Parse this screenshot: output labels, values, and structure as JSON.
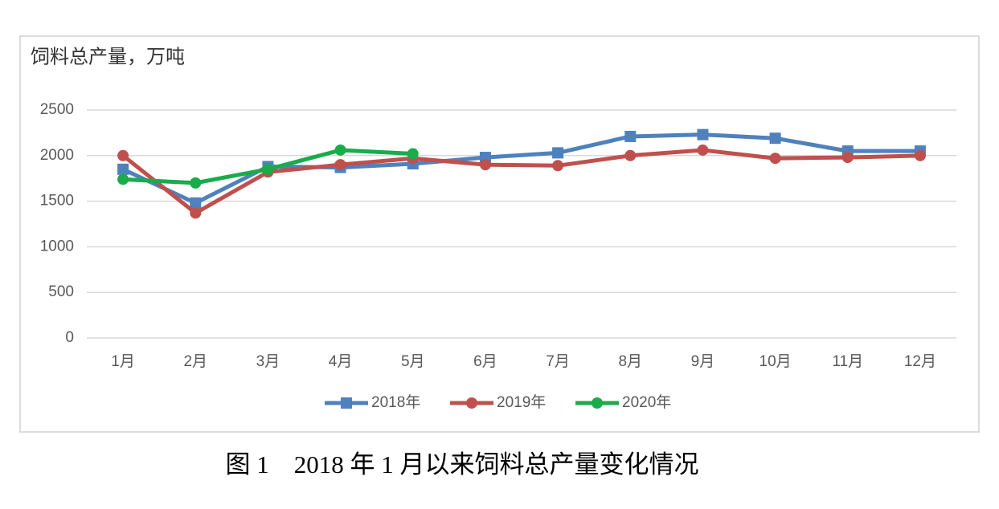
{
  "chart_data": {
    "type": "line",
    "y_label": "饲料总产量，万吨",
    "caption": "图 1　2018 年 1 月以来饲料总产量变化情况",
    "categories": [
      "1月",
      "2月",
      "3月",
      "4月",
      "5月",
      "6月",
      "7月",
      "8月",
      "9月",
      "10月",
      "11月",
      "12月"
    ],
    "series": [
      {
        "name": "2018年",
        "color": "#4f81bd",
        "marker": "square",
        "values": [
          1850,
          1480,
          1880,
          1870,
          1910,
          1980,
          2030,
          2210,
          2230,
          2190,
          2050,
          2050
        ]
      },
      {
        "name": "2019年",
        "color": "#c0504d",
        "marker": "circle",
        "values": [
          2000,
          1370,
          1820,
          1900,
          1970,
          1900,
          1890,
          2000,
          2060,
          1970,
          1980,
          2000
        ]
      },
      {
        "name": "2020年",
        "color": "#1aab4b",
        "marker": "circle",
        "values": [
          1740,
          1700,
          1850,
          2060,
          2020,
          null,
          null,
          null,
          null,
          null,
          null,
          null
        ]
      }
    ],
    "ylim": [
      0,
      2500
    ],
    "yticks": [
      0,
      500,
      1000,
      1500,
      2000,
      2500
    ],
    "grid": true,
    "legend": "bottom"
  }
}
